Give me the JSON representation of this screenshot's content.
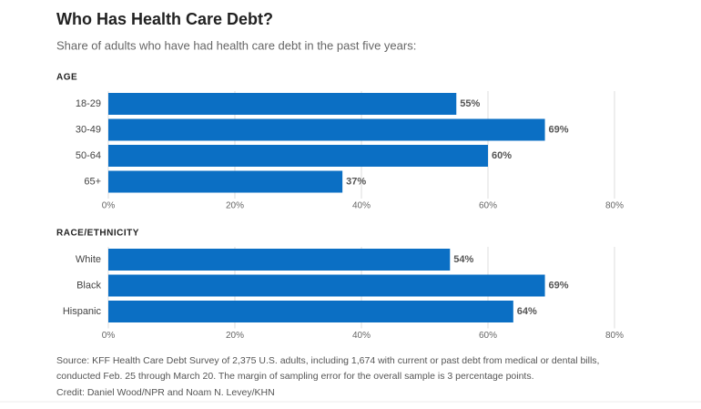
{
  "title": "Who Has Health Care Debt?",
  "subtitle": "Share of adults who have had health care debt in the past five years:",
  "source": "Source: KFF Health Care Debt Survey of 2,375 U.S. adults, including 1,674 with current or past debt from medical or dental bills, conducted Feb. 25 through March 20. The margin of sampling error for the overall sample is 3 percentage points.",
  "credit": "Credit: Daniel Wood/NPR and Noam N. Levey/KHN",
  "chart_data": [
    {
      "type": "bar",
      "orientation": "horizontal",
      "title": "AGE",
      "categories": [
        "18-29",
        "30-49",
        "50-64",
        "65+"
      ],
      "values": [
        55,
        69,
        60,
        37
      ],
      "value_labels": [
        "55%",
        "69%",
        "60%",
        "37%"
      ],
      "color": "#0b6fc4",
      "xlim": [
        0,
        80
      ],
      "xticks": [
        {
          "value": 0,
          "label": "0%"
        },
        {
          "value": 20,
          "label": "20%"
        },
        {
          "value": 40,
          "label": "40%"
        },
        {
          "value": 60,
          "label": "60%"
        },
        {
          "value": 80,
          "label": "80%"
        }
      ],
      "grid": true
    },
    {
      "type": "bar",
      "orientation": "horizontal",
      "title": "RACE/ETHNICITY",
      "categories": [
        "White",
        "Black",
        "Hispanic"
      ],
      "values": [
        54,
        69,
        64
      ],
      "value_labels": [
        "54%",
        "69%",
        "64%"
      ],
      "color": "#0b6fc4",
      "xlim": [
        0,
        80
      ],
      "xticks": [
        {
          "value": 0,
          "label": "0%"
        },
        {
          "value": 20,
          "label": "20%"
        },
        {
          "value": 40,
          "label": "40%"
        },
        {
          "value": 60,
          "label": "60%"
        },
        {
          "value": 80,
          "label": "80%"
        }
      ],
      "grid": true
    }
  ]
}
